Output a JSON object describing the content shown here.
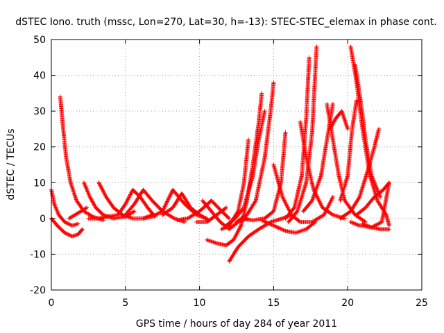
{
  "chart_data": {
    "type": "scatter",
    "title": "dSTEC Iono. truth (mssc, Lon=270, Lat=30, h=-13): STEC-STEC_elemax in phase cont.",
    "xlabel": "GPS time / hours of day 284 of year 2011",
    "ylabel": "dSTEC  / TECUs",
    "xlim": [
      0,
      25
    ],
    "ylim": [
      -20,
      50
    ],
    "xticks": [
      "0",
      "5",
      "10",
      "15",
      "20",
      "25"
    ],
    "yticks": [
      "-20",
      "-10",
      "0",
      "10",
      "20",
      "30",
      "40",
      "50"
    ],
    "grid": true,
    "marker": "plus",
    "colors": {
      "series": "#ff0000",
      "grid": "#a0a0a0",
      "axis": "#000000"
    },
    "series": [
      {
        "points": [
          [
            0.0,
            8
          ],
          [
            0.2,
            4
          ],
          [
            0.5,
            1
          ],
          [
            0.9,
            -1
          ],
          [
            1.4,
            -2
          ],
          [
            1.8,
            -1.5
          ]
        ]
      },
      {
        "points": [
          [
            0.0,
            0
          ],
          [
            0.4,
            -2
          ],
          [
            0.9,
            -4
          ],
          [
            1.4,
            -5
          ],
          [
            1.8,
            -4.5
          ],
          [
            2.1,
            -3
          ]
        ]
      },
      {
        "points": [
          [
            0.6,
            34
          ],
          [
            0.8,
            25
          ],
          [
            1.0,
            17
          ],
          [
            1.3,
            10
          ],
          [
            1.7,
            5
          ],
          [
            2.2,
            2
          ],
          [
            2.8,
            0.5
          ],
          [
            3.5,
            -0.5
          ]
        ]
      },
      {
        "points": [
          [
            2.2,
            10
          ],
          [
            2.6,
            6
          ],
          [
            3.0,
            3
          ],
          [
            3.5,
            1
          ],
          [
            4.2,
            0
          ],
          [
            5.0,
            0.5
          ],
          [
            5.6,
            2
          ]
        ]
      },
      {
        "points": [
          [
            3.2,
            10
          ],
          [
            3.7,
            6
          ],
          [
            4.2,
            3
          ],
          [
            4.8,
            1
          ],
          [
            5.5,
            0
          ],
          [
            6.2,
            0
          ],
          [
            6.8,
            1
          ]
        ]
      },
      {
        "points": [
          [
            1.2,
            0
          ],
          [
            1.8,
            1.5
          ],
          [
            2.4,
            3
          ]
        ]
      },
      {
        "points": [
          [
            2.5,
            0
          ],
          [
            3.2,
            0
          ],
          [
            3.8,
            0.5
          ],
          [
            4.5,
            1
          ],
          [
            5.0,
            4
          ],
          [
            5.5,
            8
          ],
          [
            6.0,
            6
          ],
          [
            6.5,
            3
          ],
          [
            7.0,
            0.5
          ]
        ]
      },
      {
        "points": [
          [
            5.0,
            1
          ],
          [
            5.6,
            4
          ],
          [
            6.2,
            8
          ],
          [
            6.8,
            5
          ],
          [
            7.5,
            2
          ],
          [
            8.3,
            0
          ],
          [
            9.0,
            -1
          ]
        ]
      },
      {
        "points": [
          [
            6.2,
            0
          ],
          [
            6.8,
            0.5
          ],
          [
            7.5,
            2
          ],
          [
            8.2,
            8
          ],
          [
            9.0,
            4
          ],
          [
            9.8,
            1
          ],
          [
            10.5,
            0
          ]
        ]
      },
      {
        "points": [
          [
            7.5,
            1
          ],
          [
            8.2,
            3
          ],
          [
            8.8,
            7
          ],
          [
            9.4,
            3
          ],
          [
            10.0,
            1
          ],
          [
            10.6,
            -0.5
          ]
        ]
      },
      {
        "points": [
          [
            8.5,
            -0.5
          ],
          [
            9.2,
            0
          ],
          [
            10.0,
            2
          ],
          [
            10.8,
            5
          ],
          [
            11.5,
            2
          ],
          [
            12.0,
            0
          ]
        ]
      },
      {
        "points": [
          [
            10.2,
            5
          ],
          [
            10.8,
            2
          ],
          [
            11.4,
            -1
          ],
          [
            12.0,
            -3
          ],
          [
            12.6,
            -1
          ],
          [
            13.2,
            0
          ]
        ]
      },
      {
        "points": [
          [
            9.8,
            -1
          ],
          [
            10.5,
            -1
          ],
          [
            11.0,
            0.5
          ],
          [
            11.8,
            3
          ]
        ]
      },
      {
        "points": [
          [
            10.5,
            -6
          ],
          [
            11.2,
            -7
          ],
          [
            11.8,
            -7.5
          ],
          [
            12.3,
            -6
          ],
          [
            12.8,
            -2
          ],
          [
            13.2,
            5
          ],
          [
            13.6,
            15
          ],
          [
            14.0,
            27
          ],
          [
            14.2,
            35
          ]
        ]
      },
      {
        "points": [
          [
            12.0,
            -12
          ],
          [
            12.6,
            -8
          ],
          [
            13.3,
            -5
          ],
          [
            14.0,
            -3
          ],
          [
            14.8,
            -1
          ],
          [
            15.6,
            0
          ],
          [
            16.2,
            1
          ]
        ]
      },
      {
        "points": [
          [
            11.5,
            -3
          ],
          [
            12.0,
            -2
          ],
          [
            12.6,
            2
          ],
          [
            13.0,
            10
          ],
          [
            13.3,
            22
          ]
        ]
      },
      {
        "points": [
          [
            11.8,
            -2
          ],
          [
            12.4,
            0
          ],
          [
            13.0,
            3
          ],
          [
            13.6,
            12
          ],
          [
            14.0,
            22
          ],
          [
            14.4,
            30
          ]
        ]
      },
      {
        "points": [
          [
            12.5,
            -1
          ],
          [
            13.2,
            1
          ],
          [
            13.8,
            5
          ],
          [
            14.4,
            17
          ],
          [
            14.8,
            30
          ],
          [
            15.0,
            38
          ]
        ]
      },
      {
        "points": [
          [
            12.8,
            0
          ],
          [
            13.6,
            -0.5
          ],
          [
            14.4,
            0
          ],
          [
            15.0,
            2
          ],
          [
            15.5,
            10
          ],
          [
            15.8,
            24
          ]
        ]
      },
      {
        "points": [
          [
            15.0,
            15
          ],
          [
            15.6,
            6
          ],
          [
            16.2,
            1
          ],
          [
            16.8,
            -1
          ],
          [
            17.6,
            -1
          ],
          [
            18.4,
            1
          ],
          [
            19.0,
            6
          ]
        ]
      },
      {
        "points": [
          [
            14.2,
            -0.5
          ],
          [
            15.0,
            -2
          ],
          [
            15.8,
            -3.5
          ],
          [
            16.5,
            -4
          ],
          [
            17.2,
            -3
          ],
          [
            17.8,
            -1
          ]
        ]
      },
      {
        "points": [
          [
            15.8,
            0
          ],
          [
            16.4,
            3
          ],
          [
            16.9,
            12
          ],
          [
            17.2,
            28
          ],
          [
            17.4,
            45
          ]
        ]
      },
      {
        "points": [
          [
            16.0,
            -1
          ],
          [
            16.6,
            2
          ],
          [
            17.2,
            10
          ],
          [
            17.6,
            24
          ],
          [
            17.9,
            48
          ]
        ]
      },
      {
        "points": [
          [
            16.8,
            27
          ],
          [
            17.2,
            17
          ],
          [
            17.7,
            8
          ],
          [
            18.3,
            3
          ],
          [
            19.0,
            1
          ],
          [
            19.8,
            0
          ]
        ]
      },
      {
        "points": [
          [
            17.0,
            2
          ],
          [
            17.6,
            5
          ],
          [
            18.2,
            12
          ],
          [
            18.6,
            22
          ],
          [
            19.0,
            32
          ]
        ]
      },
      {
        "points": [
          [
            18.6,
            32
          ],
          [
            19.0,
            22
          ],
          [
            19.4,
            12
          ],
          [
            19.8,
            5
          ],
          [
            20.5,
            1
          ],
          [
            21.2,
            -1
          ]
        ]
      },
      {
        "points": [
          [
            18.8,
            25
          ],
          [
            19.2,
            28
          ],
          [
            19.6,
            30
          ],
          [
            20.0,
            25
          ]
        ]
      },
      {
        "points": [
          [
            19.5,
            5
          ],
          [
            20.0,
            12
          ],
          [
            20.3,
            25
          ],
          [
            20.6,
            33
          ]
        ]
      },
      {
        "points": [
          [
            20.2,
            48
          ],
          [
            20.6,
            38
          ],
          [
            21.0,
            25
          ],
          [
            21.5,
            12
          ],
          [
            22.0,
            5
          ],
          [
            22.6,
            1
          ],
          [
            22.8,
            -2
          ]
        ]
      },
      {
        "points": [
          [
            20.5,
            43
          ],
          [
            20.9,
            32
          ],
          [
            21.2,
            22
          ],
          [
            21.6,
            12
          ],
          [
            22.2,
            6
          ]
        ]
      },
      {
        "points": [
          [
            19.5,
            0
          ],
          [
            20.2,
            2
          ],
          [
            20.8,
            6
          ],
          [
            21.4,
            14
          ],
          [
            21.8,
            20
          ],
          [
            22.1,
            25
          ]
        ]
      },
      {
        "points": [
          [
            20.2,
            -1
          ],
          [
            20.8,
            -2
          ],
          [
            21.6,
            -2.5
          ],
          [
            22.3,
            -1
          ],
          [
            22.8,
            10
          ]
        ]
      },
      {
        "points": [
          [
            21.0,
            -1.5
          ],
          [
            21.6,
            -2.5
          ],
          [
            22.2,
            -3
          ],
          [
            22.8,
            -3
          ]
        ]
      },
      {
        "points": [
          [
            20.6,
            1
          ],
          [
            21.2,
            3
          ],
          [
            21.8,
            6
          ],
          [
            22.4,
            8
          ],
          [
            22.8,
            10
          ]
        ]
      }
    ]
  }
}
